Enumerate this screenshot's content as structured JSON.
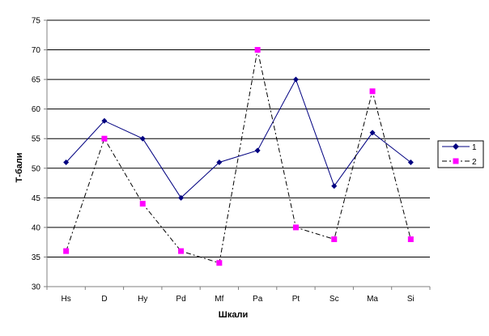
{
  "chart_data": {
    "type": "line",
    "title": "",
    "xlabel": "Шкали",
    "ylabel": "Т-бали",
    "categories": [
      "Hs",
      "D",
      "Hy",
      "Pd",
      "Mf",
      "Pa",
      "Pt",
      "Sc",
      "Ma",
      "Si"
    ],
    "ylim": [
      30,
      75
    ],
    "yticks": [
      30,
      35,
      40,
      45,
      50,
      55,
      60,
      65,
      70,
      75
    ],
    "grid": true,
    "legend_position": "right",
    "series": [
      {
        "name": "1",
        "values": [
          51,
          58,
          55,
          45,
          51,
          53,
          65,
          47,
          56,
          51
        ],
        "color": "#000080",
        "line_style": "solid",
        "marker": "diamond",
        "marker_color": "#000080"
      },
      {
        "name": "2",
        "values": [
          36,
          55,
          44,
          36,
          34,
          70,
          40,
          38,
          63,
          38
        ],
        "color": "#000000",
        "line_style": "dash-dot",
        "marker": "square",
        "marker_color": "#ff00ff"
      }
    ],
    "colors": {
      "plot_background": "#ffffff",
      "grid": "#000000",
      "axis": "#808080"
    }
  }
}
